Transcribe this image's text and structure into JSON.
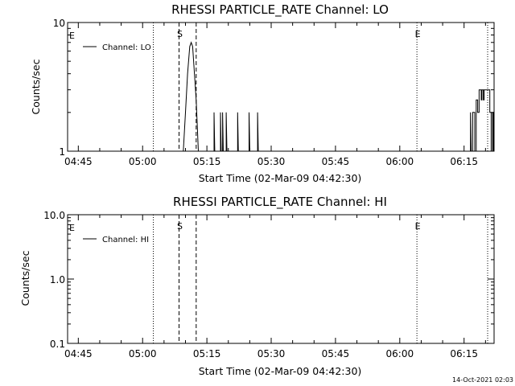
{
  "footer": {
    "timestamp": "14-Oct-2021 02:03"
  },
  "colors": {
    "background": "#ffffff",
    "foreground": "#000000"
  },
  "chart_data": [
    {
      "type": "line",
      "title": "RHESSI PARTICLE_RATE Channel: LO",
      "xlabel": "Start Time (02-Mar-09 04:42:30)",
      "ylabel": "Counts/sec",
      "y_scale": "log",
      "ylim": [
        1,
        10
      ],
      "xlim": [
        "04:42:30",
        "06:22:00"
      ],
      "x_ticks": [
        "04:45",
        "05:00",
        "05:15",
        "05:30",
        "05:45",
        "06:00",
        "06:15"
      ],
      "y_ticks": [
        "1",
        "10"
      ],
      "legend": {
        "entries": [
          "Channel: LO"
        ],
        "placement": "top-left"
      },
      "vertical_markers": [
        {
          "time": "05:02:30",
          "style": "dotted"
        },
        {
          "time": "05:08:30",
          "style": "dashed",
          "label": "S"
        },
        {
          "time": "05:12:30",
          "style": "dashed"
        },
        {
          "time": "06:04:00",
          "style": "dotted",
          "label": "E"
        },
        {
          "time": "06:20:30",
          "style": "dotted"
        }
      ],
      "start_label": "E",
      "series": [
        {
          "name": "Channel: LO",
          "points": [
            [
              "05:09:30",
              1
            ],
            [
              "05:10:00",
              2
            ],
            [
              "05:10:30",
              4
            ],
            [
              "05:11:00",
              6.5
            ],
            [
              "05:11:20",
              7
            ],
            [
              "05:11:40",
              6.5
            ],
            [
              "05:12:00",
              4.5
            ],
            [
              "05:12:30",
              2.5
            ],
            [
              "05:13:00",
              1
            ],
            [
              "05:16:40",
              1
            ],
            [
              "05:16:40",
              2
            ],
            [
              "05:16:50",
              1
            ],
            [
              "05:18:10",
              1
            ],
            [
              "05:18:10",
              2
            ],
            [
              "05:18:20",
              1
            ],
            [
              "05:18:40",
              1
            ],
            [
              "05:18:40",
              2
            ],
            [
              "05:18:50",
              1
            ],
            [
              "05:19:30",
              1
            ],
            [
              "05:19:30",
              2
            ],
            [
              "05:19:40",
              1
            ],
            [
              "05:22:10",
              1
            ],
            [
              "05:22:10",
              2
            ],
            [
              "05:22:20",
              1
            ],
            [
              "05:24:50",
              1
            ],
            [
              "05:24:50",
              2
            ],
            [
              "05:25:00",
              1
            ],
            [
              "05:26:50",
              1
            ],
            [
              "05:26:50",
              2
            ],
            [
              "05:27:00",
              1
            ],
            [
              "06:16:30",
              1
            ],
            [
              "06:16:30",
              2
            ],
            [
              "06:16:40",
              1
            ],
            [
              "06:17:00",
              1
            ],
            [
              "06:17:00",
              2
            ],
            [
              "06:17:30",
              2
            ],
            [
              "06:17:30",
              1
            ],
            [
              "06:17:50",
              1
            ],
            [
              "06:17:50",
              2.5
            ],
            [
              "06:18:10",
              2.5
            ],
            [
              "06:18:10",
              2
            ],
            [
              "06:18:30",
              2
            ],
            [
              "06:18:30",
              3
            ],
            [
              "06:19:00",
              3
            ],
            [
              "06:19:00",
              2.5
            ],
            [
              "06:19:10",
              2.5
            ],
            [
              "06:19:10",
              3
            ],
            [
              "06:19:30",
              3
            ],
            [
              "06:19:30",
              2.5
            ],
            [
              "06:19:40",
              2.5
            ],
            [
              "06:19:40",
              3
            ],
            [
              "06:21:00",
              3
            ],
            [
              "06:21:00",
              2
            ],
            [
              "06:21:20",
              2
            ],
            [
              "06:21:20",
              1
            ],
            [
              "06:21:40",
              1
            ],
            [
              "06:21:40",
              2
            ],
            [
              "06:21:50",
              2
            ],
            [
              "06:21:50",
              1
            ]
          ]
        }
      ]
    },
    {
      "type": "line",
      "title": "RHESSI PARTICLE_RATE Channel: HI",
      "xlabel": "Start Time (02-Mar-09 04:42:30)",
      "ylabel": "Counts/sec",
      "y_scale": "log",
      "ylim": [
        0.1,
        10
      ],
      "xlim": [
        "04:42:30",
        "06:22:00"
      ],
      "x_ticks": [
        "04:45",
        "05:00",
        "05:15",
        "05:30",
        "05:45",
        "06:00",
        "06:15"
      ],
      "y_ticks": [
        "0.1",
        "1.0",
        "10.0"
      ],
      "legend": {
        "entries": [
          "Channel: HI"
        ],
        "placement": "top-left"
      },
      "vertical_markers": [
        {
          "time": "05:02:30",
          "style": "dotted"
        },
        {
          "time": "05:08:30",
          "style": "dashed",
          "label": "S"
        },
        {
          "time": "05:12:30",
          "style": "dashed"
        },
        {
          "time": "06:04:00",
          "style": "dotted",
          "label": "E"
        },
        {
          "time": "06:20:30",
          "style": "dotted"
        }
      ],
      "start_label": "E",
      "series": [
        {
          "name": "Channel: HI",
          "points": []
        }
      ]
    }
  ]
}
